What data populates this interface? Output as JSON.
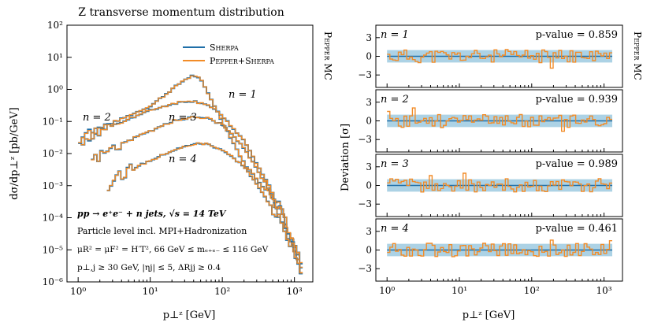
{
  "chart_data": [
    {
      "type": "line",
      "title": "Z transverse momentum distribution",
      "xlabel": "p⊥ᶻ [GeV]",
      "ylabel": "dσ/dp⊥ᶻ [pb/GeV]",
      "xscale": "log",
      "yscale": "log",
      "xlim": [
        0.7,
        1800
      ],
      "ylim": [
        1e-06,
        100
      ],
      "x_ticks": [
        {
          "v": 1,
          "label": "10⁰"
        },
        {
          "v": 10,
          "label": "10¹"
        },
        {
          "v": 100,
          "label": "10²"
        },
        {
          "v": 1000,
          "label": "10³"
        }
      ],
      "y_ticks": [
        {
          "v": 1e-06,
          "label": "10⁻⁶"
        },
        {
          "v": 1e-05,
          "label": "10⁻⁵"
        },
        {
          "v": 0.0001,
          "label": "10⁻⁴"
        },
        {
          "v": 0.001,
          "label": "10⁻³"
        },
        {
          "v": 0.01,
          "label": "10⁻²"
        },
        {
          "v": 0.1,
          "label": "10⁻¹"
        },
        {
          "v": 1,
          "label": "10⁰"
        },
        {
          "v": 10,
          "label": "10¹"
        },
        {
          "v": 100,
          "label": "10²"
        }
      ],
      "legend": {
        "position": "upper-right",
        "entries": [
          {
            "label": "Sherpa",
            "color": "#1f6fa8"
          },
          {
            "label": "Pepper+Sherpa",
            "color": "#f28c28"
          }
        ]
      },
      "annotations": [
        "pp → e⁺e⁻ + n jets, √s = 14 TeV",
        "Particle level incl. MPI+Hadronization",
        "μR² = μF² = H′T²,  66 GeV ≤ mₑ₊ₑ₋ ≤ 116 GeV",
        "p⊥,j ≥ 30 GeV, |ηj| ≤ 5, ΔRjj ≥ 0.4"
      ],
      "series": [
        {
          "name": "n = 1",
          "x": [
            1,
            2,
            5,
            10,
            20,
            30,
            40,
            50,
            70,
            100,
            200,
            500,
            1000,
            1300
          ],
          "y": [
            0.02,
            0.06,
            0.15,
            0.3,
            1.0,
            2.0,
            2.8,
            2.0,
            0.5,
            0.1,
            0.005,
            0.0004,
            1e-05,
            2e-06
          ]
        },
        {
          "name": "n = 2",
          "x": [
            1,
            2,
            5,
            10,
            20,
            30,
            40,
            60,
            100,
            200,
            500,
            1000,
            1300
          ],
          "y": [
            0.03,
            0.05,
            0.12,
            0.22,
            0.35,
            0.42,
            0.43,
            0.35,
            0.15,
            0.025,
            0.0006,
            1.5e-05,
            3e-06
          ]
        },
        {
          "name": "n = 3",
          "x": [
            1.5,
            3,
            5,
            10,
            20,
            40,
            60,
            100,
            200,
            500,
            1000,
            1300
          ],
          "y": [
            0.006,
            0.015,
            0.025,
            0.05,
            0.1,
            0.14,
            0.13,
            0.08,
            0.015,
            0.0005,
            2e-05,
            4e-06
          ]
        },
        {
          "name": "n = 4",
          "x": [
            2.5,
            3,
            5,
            10,
            20,
            40,
            60,
            100,
            200,
            500,
            1000,
            1300
          ],
          "y": [
            0.0009,
            0.0015,
            0.003,
            0.006,
            0.012,
            0.02,
            0.02,
            0.013,
            0.004,
            0.0002,
            1e-05,
            2e-06
          ]
        }
      ],
      "side_label": "Pepper MC"
    },
    {
      "type": "line",
      "xlabel": "p⊥ᶻ [GeV]",
      "ylabel": "Deviation [σ]",
      "xscale": "log",
      "xlim": [
        0.7,
        1800
      ],
      "ylim": [
        -5,
        5
      ],
      "y_ticks": [
        {
          "v": 3,
          "label": "3"
        },
        {
          "v": 0,
          "label": "0"
        },
        {
          "v": -3,
          "label": "−3"
        }
      ],
      "x_ticks": [
        {
          "v": 1,
          "label": "10⁰"
        },
        {
          "v": 10,
          "label": "10¹"
        },
        {
          "v": 100,
          "label": "10²"
        },
        {
          "v": 1000,
          "label": "10³"
        }
      ],
      "band": {
        "low": -1,
        "high": 1,
        "color": "#9ecae1"
      },
      "panels": [
        {
          "n_label": "n = 1",
          "pvalue_label": "p-value = 0.859",
          "seed": 11
        },
        {
          "n_label": "n = 2",
          "pvalue_label": "p-value = 0.939",
          "seed": 23
        },
        {
          "n_label": "n = 3",
          "pvalue_label": "p-value = 0.989",
          "seed": 37
        },
        {
          "n_label": "n = 4",
          "pvalue_label": "p-value = 0.461",
          "seed": 53
        }
      ],
      "side_label": "Pepper MC"
    }
  ],
  "colors": {
    "sherpa": "#1f6fa8",
    "pepper": "#f28c28",
    "band": "#9ecae1"
  }
}
